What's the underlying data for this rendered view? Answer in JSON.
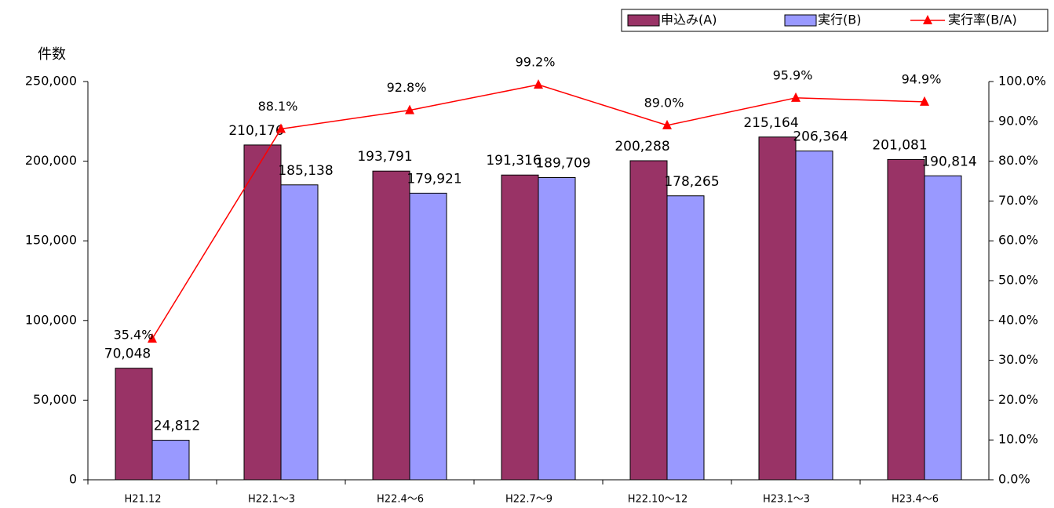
{
  "chart_data": {
    "type": "bar",
    "y_axis_label": "件数",
    "categories": [
      "H21.12",
      "H22.1～3",
      "H22.4～6",
      "H22.7～9",
      "H22.10～12",
      "H23.1～3",
      "H23.4～6"
    ],
    "series": [
      {
        "name": "申込み(A)",
        "color": "#993366",
        "values": [
          70048,
          210176,
          193791,
          191316,
          200288,
          215164,
          201081
        ],
        "value_labels": [
          "70,048",
          "210,176",
          "193,791",
          "191,316",
          "200,288",
          "215,164",
          "201,081"
        ]
      },
      {
        "name": "実行(B)",
        "color": "#9999ff",
        "values": [
          24812,
          185138,
          179921,
          189709,
          178265,
          206364,
          190814
        ],
        "value_labels": [
          "24,812",
          "185,138",
          "179,921",
          "189,709",
          "178,265",
          "206,364",
          "190,814"
        ]
      },
      {
        "name": "実行率(B/A)",
        "color": "#ff0000",
        "type": "line",
        "axis": "y2",
        "values": [
          35.4,
          88.1,
          92.8,
          99.2,
          89.0,
          95.9,
          94.9
        ],
        "value_labels": [
          "35.4%",
          "88.1%",
          "92.8%",
          "99.2%",
          "89.0%",
          "95.9%",
          "94.9%"
        ]
      }
    ],
    "ylim": [
      0,
      250000
    ],
    "yticks": [
      {
        "value": 0,
        "label": "0"
      },
      {
        "value": 50000,
        "label": "50,000"
      },
      {
        "value": 100000,
        "label": "100,000"
      },
      {
        "value": 150000,
        "label": "150,000"
      },
      {
        "value": 200000,
        "label": "200,000"
      },
      {
        "value": 250000,
        "label": "250,000"
      }
    ],
    "y2lim": [
      0,
      100
    ],
    "y2ticks": [
      {
        "value": 0,
        "label": "0.0%"
      },
      {
        "value": 10,
        "label": "10.0%"
      },
      {
        "value": 20,
        "label": "20.0%"
      },
      {
        "value": 30,
        "label": "30.0%"
      },
      {
        "value": 40,
        "label": "40.0%"
      },
      {
        "value": 50,
        "label": "50.0%"
      },
      {
        "value": 60,
        "label": "60.0%"
      },
      {
        "value": 70,
        "label": "70.0%"
      },
      {
        "value": 80,
        "label": "80.0%"
      },
      {
        "value": 90,
        "label": "90.0%"
      },
      {
        "value": 100,
        "label": "100.0%"
      }
    ],
    "legend": "top-right"
  }
}
